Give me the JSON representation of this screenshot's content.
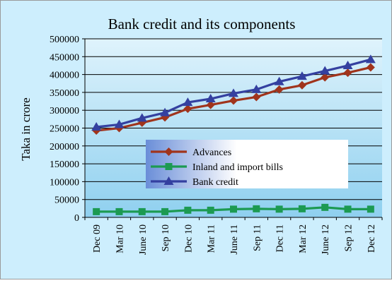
{
  "chart_data": {
    "type": "line",
    "title": "Bank credit and its components",
    "xlabel": "",
    "ylabel": "Taka in crore",
    "categories": [
      "Dec 09",
      "Mar 10",
      "June 10",
      "Sep 10",
      "Dec 10",
      "Mar 11",
      "June 11",
      "Sep 11",
      "Dec 11",
      "Mar 12",
      "June 12",
      "Sep 12",
      "Dec 12"
    ],
    "ylim": [
      0,
      500000
    ],
    "yticks": [
      0,
      50000,
      100000,
      150000,
      200000,
      250000,
      300000,
      350000,
      400000,
      450000,
      500000
    ],
    "grid": "horizontal",
    "legend_position": "center",
    "series": [
      {
        "name": "Advances",
        "color": "#a0341c",
        "marker": "diamond",
        "values": [
          243000,
          250000,
          265000,
          280000,
          304000,
          315000,
          327000,
          337000,
          358000,
          370000,
          392000,
          405000,
          420000
        ]
      },
      {
        "name": "Inland and import bills",
        "color": "#1c9a52",
        "marker": "square",
        "values": [
          16000,
          16000,
          16000,
          16000,
          20000,
          20000,
          23000,
          24000,
          23000,
          24000,
          28000,
          23000,
          23000
        ]
      },
      {
        "name": "Bank  credit",
        "color": "#3440a0",
        "marker": "triangle",
        "values": [
          253000,
          260000,
          278000,
          293000,
          322000,
          332000,
          347000,
          358000,
          380000,
          395000,
          410000,
          425000,
          442000
        ]
      }
    ]
  }
}
